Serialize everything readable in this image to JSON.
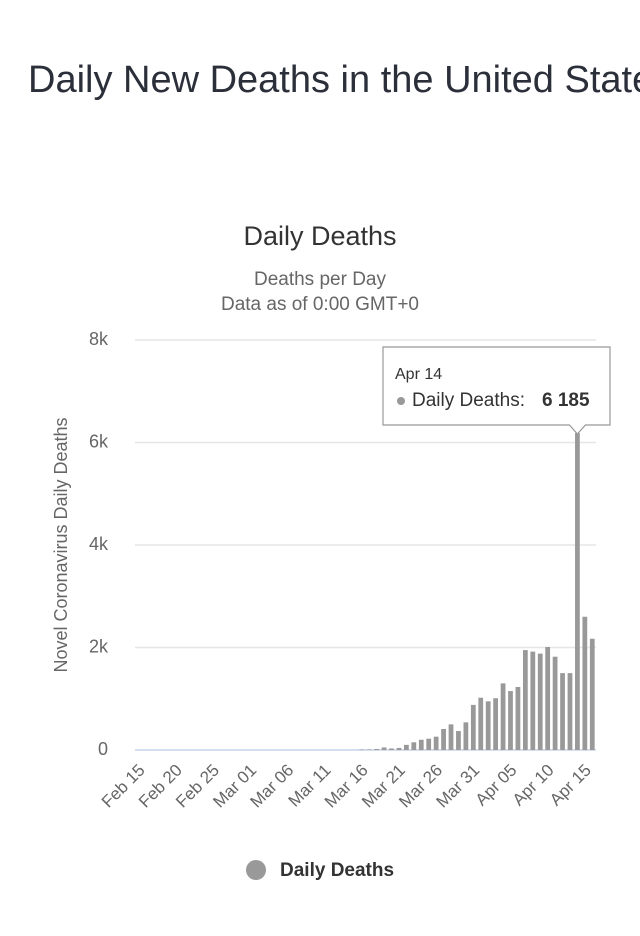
{
  "page_title": "Daily New Deaths in the United States",
  "chart_data": {
    "type": "bar",
    "title": "Daily Deaths",
    "subtitle": [
      "Deaths per Day",
      "Data as of 0:00 GMT+0"
    ],
    "y_label": "Novel Coronavirus Daily Deaths",
    "categories": [
      "Feb 15",
      null,
      null,
      null,
      null,
      "Feb 20",
      null,
      null,
      null,
      null,
      "Feb 25",
      null,
      null,
      null,
      null,
      "Mar 01",
      null,
      null,
      null,
      null,
      "Mar 06",
      null,
      null,
      null,
      null,
      "Mar 11",
      null,
      null,
      null,
      null,
      "Mar 16",
      null,
      null,
      null,
      null,
      "Mar 21",
      null,
      null,
      null,
      null,
      "Mar 26",
      null,
      null,
      null,
      null,
      "Mar 31",
      null,
      null,
      null,
      null,
      "Apr 05",
      null,
      null,
      null,
      null,
      "Apr 10",
      null,
      null,
      null,
      null,
      "Apr 15",
      null
    ],
    "series": [
      {
        "name": "Daily Deaths",
        "color": "#999999",
        "values": [
          0,
          0,
          0,
          0,
          0,
          0,
          0,
          0,
          0,
          0,
          0,
          0,
          0,
          0,
          0,
          0,
          0,
          0,
          0,
          0,
          0,
          0,
          0,
          0,
          0,
          0,
          0,
          0,
          0,
          0,
          10,
          10,
          20,
          50,
          30,
          40,
          100,
          150,
          200,
          220,
          260,
          410,
          500,
          370,
          540,
          880,
          1020,
          950,
          1010,
          1300,
          1150,
          1230,
          1950,
          1920,
          1880,
          2010,
          1820,
          1500,
          1500,
          6185,
          2600,
          2170
        ]
      }
    ],
    "ylim": [
      0,
      8000
    ],
    "yticks": [
      0,
      {
        "value": 2000,
        "label": "2k"
      },
      {
        "value": 4000,
        "label": "4k"
      },
      {
        "value": 6000,
        "label": "6k"
      },
      {
        "value": 8000,
        "label": "8k"
      }
    ],
    "grid": true,
    "tooltip": {
      "date": "Apr 14",
      "label": "Daily Deaths:",
      "value": 6185,
      "value_label": "6 185"
    }
  }
}
